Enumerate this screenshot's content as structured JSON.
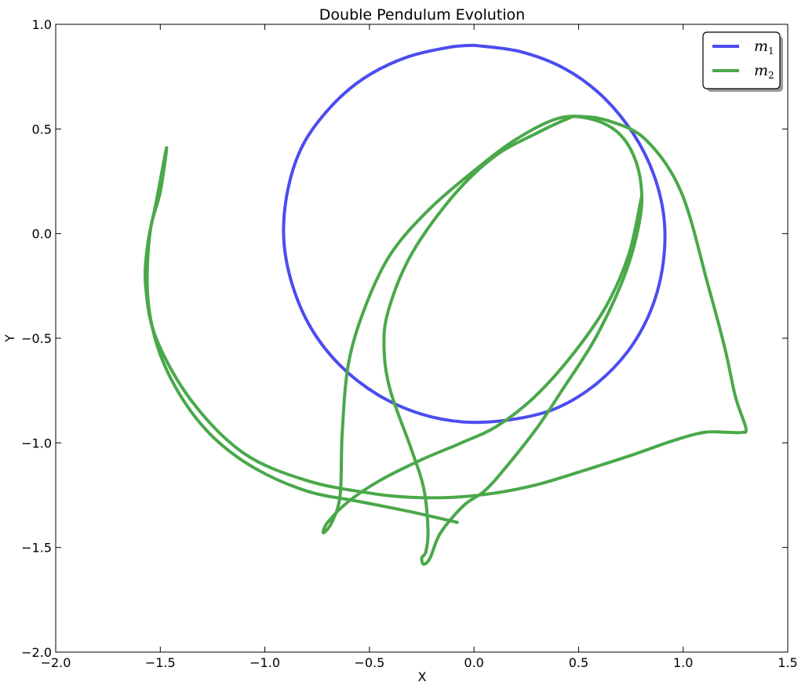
{
  "chart_data": {
    "type": "line",
    "title": "Double Pendulum Evolution",
    "xlabel": "X",
    "ylabel": "Y",
    "xlim": [
      -2.0,
      1.5
    ],
    "ylim": [
      -2.0,
      1.0
    ],
    "xticks": [
      "−2.0",
      "−1.5",
      "−1.0",
      "−0.5",
      "0.0",
      "0.5",
      "1.0",
      "1.5"
    ],
    "xtick_values": [
      -2.0,
      -1.5,
      -1.0,
      -0.5,
      0.0,
      0.5,
      1.0,
      1.5
    ],
    "yticks": [
      "1.0",
      "0.5",
      "0.0",
      "−0.5",
      "−1.0",
      "−1.5",
      "−2.0"
    ],
    "ytick_values": [
      1.0,
      0.5,
      0.0,
      -0.5,
      -1.0,
      -1.5,
      -2.0
    ],
    "grid": false,
    "legend_position": "top-right",
    "series": [
      {
        "name": "m",
        "name_subscript": "1",
        "color": "#4c4cf0",
        "x": [
          0.0,
          0.22,
          0.43,
          0.61,
          0.76,
          0.86,
          0.91,
          0.9,
          0.84,
          0.73,
          0.57,
          0.38,
          0.17,
          -0.05,
          -0.26,
          -0.46,
          -0.64,
          -0.78,
          -0.87,
          -0.91,
          -0.89,
          -0.82,
          -0.69,
          -0.53,
          -0.33,
          -0.12,
          0.0
        ],
        "y": [
          0.9,
          0.87,
          0.79,
          0.66,
          0.48,
          0.28,
          0.06,
          -0.17,
          -0.38,
          -0.57,
          -0.73,
          -0.84,
          -0.89,
          -0.9,
          -0.86,
          -0.77,
          -0.63,
          -0.45,
          -0.24,
          -0.02,
          0.21,
          0.42,
          0.6,
          0.74,
          0.84,
          0.89,
          0.9
        ]
      },
      {
        "name": "m",
        "name_subscript": "2",
        "color": "#4aa84a",
        "x": [
          0.8,
          0.74,
          0.63,
          0.47,
          0.29,
          0.11,
          -0.06,
          -0.25,
          -0.45,
          -0.6,
          -0.7,
          -0.72,
          -0.68,
          -0.64,
          -0.63,
          -0.6,
          -0.52,
          -0.4,
          -0.22,
          0.0,
          0.2,
          0.4,
          0.55,
          0.68,
          0.76,
          0.8,
          0.79,
          0.72,
          0.58,
          0.42,
          0.3,
          0.15,
          0.05,
          -0.05,
          -0.16,
          -0.21,
          -0.24,
          -0.25,
          -0.23,
          -0.22,
          -0.24,
          -0.3,
          -0.4,
          -0.43,
          -0.41,
          -0.3,
          -0.1,
          0.1,
          0.3,
          0.45,
          0.5,
          0.64,
          0.82,
          0.99,
          1.12,
          1.2,
          1.25,
          1.3,
          1.28,
          1.22,
          1.1,
          0.95,
          0.75,
          0.5,
          0.3,
          0.1,
          -0.1,
          -0.3,
          -0.5,
          -0.8,
          -1.1,
          -1.35,
          -1.52,
          -1.57,
          -1.56,
          -1.52,
          -1.47,
          -1.5,
          -1.55,
          -1.56,
          -1.51,
          -1.4,
          -1.25,
          -1.05,
          -0.8,
          -0.55,
          -0.3,
          -0.08
        ],
        "y": [
          0.17,
          -0.1,
          -0.35,
          -0.58,
          -0.78,
          -0.92,
          -1.0,
          -1.08,
          -1.18,
          -1.28,
          -1.38,
          -1.43,
          -1.38,
          -1.25,
          -0.95,
          -0.62,
          -0.35,
          -0.1,
          0.11,
          0.3,
          0.45,
          0.55,
          0.55,
          0.49,
          0.38,
          0.22,
          0.05,
          -0.2,
          -0.5,
          -0.75,
          -0.93,
          -1.12,
          -1.23,
          -1.3,
          -1.43,
          -1.55,
          -1.58,
          -1.55,
          -1.52,
          -1.42,
          -1.22,
          -1.03,
          -0.75,
          -0.55,
          -0.37,
          -0.1,
          0.18,
          0.37,
          0.48,
          0.55,
          0.56,
          0.54,
          0.45,
          0.2,
          -0.25,
          -0.55,
          -0.78,
          -0.93,
          -0.95,
          -0.95,
          -0.95,
          -0.99,
          -1.06,
          -1.14,
          -1.2,
          -1.24,
          -1.26,
          -1.26,
          -1.24,
          -1.18,
          -1.05,
          -0.8,
          -0.5,
          -0.25,
          -0.05,
          0.15,
          0.41,
          0.2,
          0.0,
          -0.3,
          -0.55,
          -0.78,
          -0.97,
          -1.12,
          -1.23,
          -1.28,
          -1.33,
          -1.38
        ]
      }
    ]
  }
}
